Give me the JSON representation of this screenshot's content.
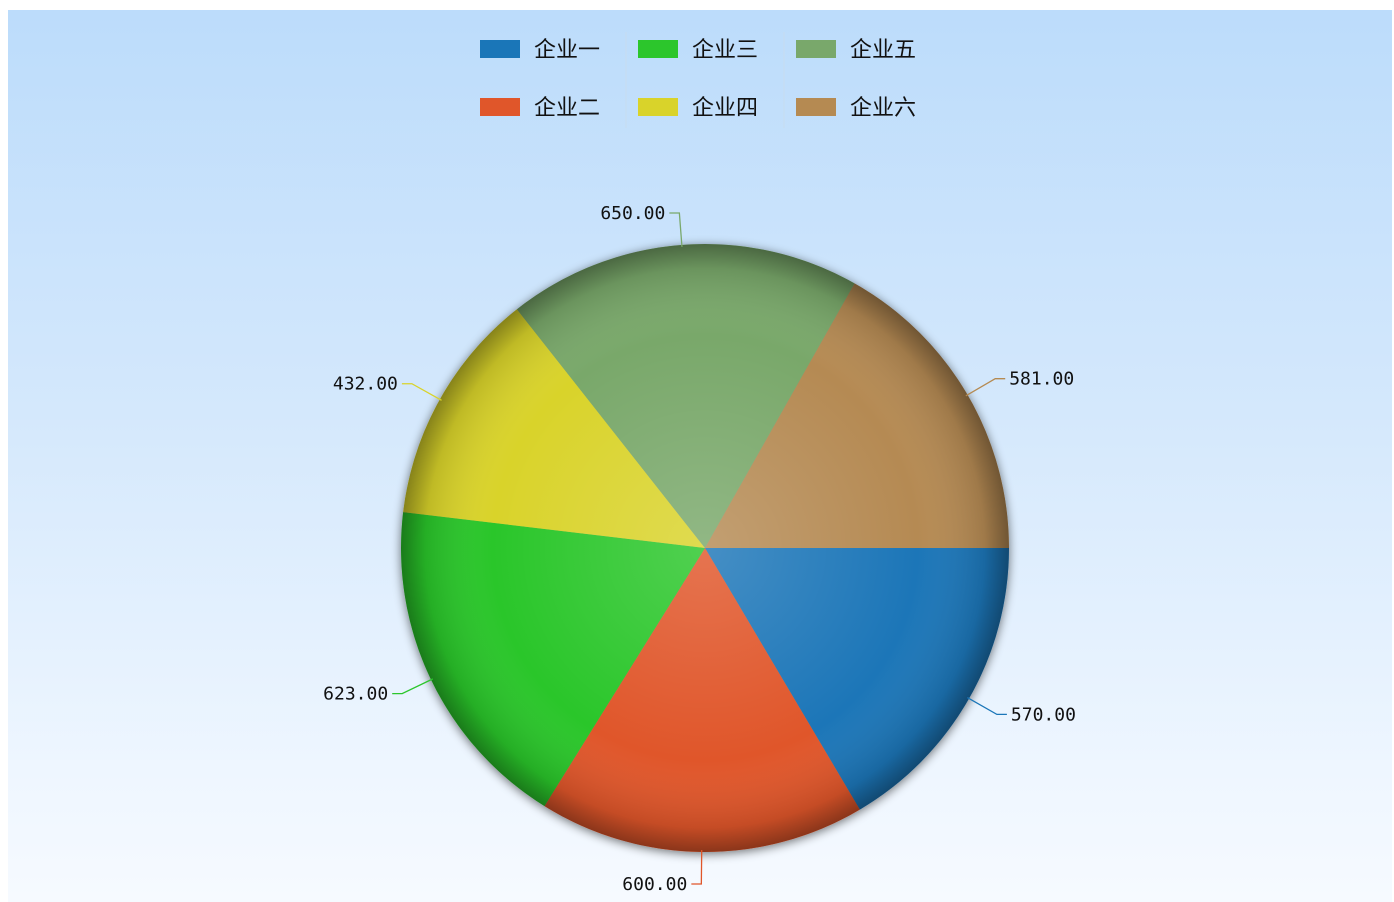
{
  "chart_data": {
    "type": "pie",
    "title": "",
    "start_angle_deg": 0,
    "direction": "clockwise",
    "slices": [
      {
        "name": "企业一",
        "value": 570,
        "label": "570.00",
        "color": "#1a76b8"
      },
      {
        "name": "企业二",
        "value": 600,
        "label": "600.00",
        "color": "#e0562a"
      },
      {
        "name": "企业三",
        "value": 623,
        "label": "623.00",
        "color": "#2cc62c"
      },
      {
        "name": "企业四",
        "value": 432,
        "label": "432.00",
        "color": "#d9d32a"
      },
      {
        "name": "企业五",
        "value": 650,
        "label": "650.00",
        "color": "#79a86b"
      },
      {
        "name": "企业六",
        "value": 581,
        "label": "581.00",
        "color": "#b58a52"
      }
    ],
    "legend": {
      "position": "top-center",
      "columns": [
        [
          "企业一",
          "企业二"
        ],
        [
          "企业三",
          "企业四"
        ],
        [
          "企业五",
          "企业六"
        ]
      ]
    }
  }
}
